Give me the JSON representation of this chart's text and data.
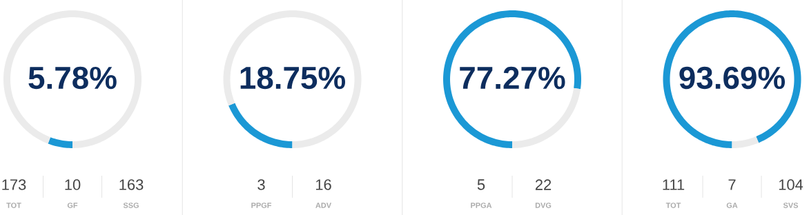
{
  "chart_data": [
    {
      "type": "donut",
      "title": "5.78%",
      "categories": [
        null,
        null
      ],
      "values": [
        5.78,
        94.22
      ],
      "colors": [
        "#1b98d5",
        "#ebebeb"
      ],
      "annotations": [
        "173",
        "TOT",
        "10",
        "GF",
        "163",
        "SSG"
      ]
    },
    {
      "type": "donut",
      "title": "18.75%",
      "categories": [
        null,
        null
      ],
      "values": [
        18.75,
        81.25
      ],
      "colors": [
        "#1b98d5",
        "#ebebeb"
      ],
      "annotations": [
        "3",
        "PPGF",
        "16",
        "ADV"
      ]
    },
    {
      "type": "donut",
      "title": "77.27%",
      "categories": [
        null,
        null
      ],
      "values": [
        77.27,
        22.73
      ],
      "colors": [
        "#1b98d5",
        "#ebebeb"
      ],
      "annotations": [
        "5",
        "PPGA",
        "22",
        "DVG"
      ]
    },
    {
      "type": "donut",
      "title": "93.69%",
      "categories": [
        null,
        null
      ],
      "values": [
        93.69,
        6.31
      ],
      "colors": [
        "#1b98d5",
        "#ebebeb"
      ],
      "annotations": [
        "111",
        "TOT",
        "7",
        "GA",
        "104",
        "SVS"
      ]
    }
  ]
}
